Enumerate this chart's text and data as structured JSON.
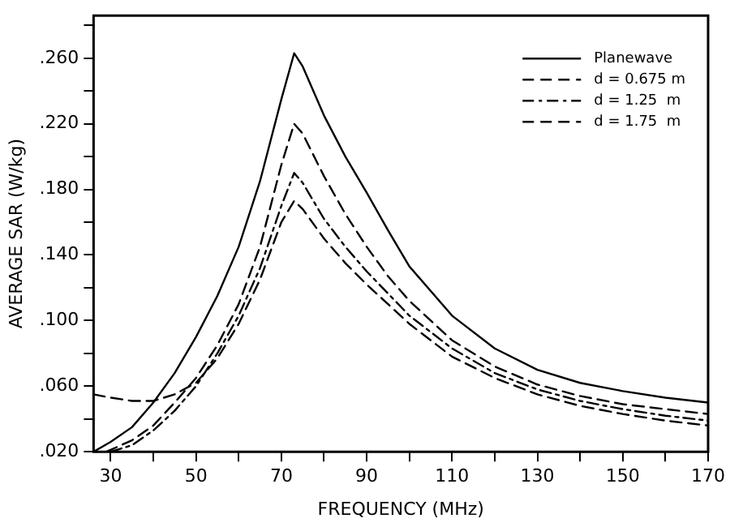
{
  "chart_data": {
    "type": "line",
    "xlabel": "FREQUENCY (MHz)",
    "ylabel": "AVERAGE SAR (W/kg)",
    "xlim": [
      26,
      170
    ],
    "xticks": [
      30,
      {
        "value": 40,
        "label": null
      },
      50,
      {
        "value": 60,
        "label": null
      },
      70,
      {
        "value": 80,
        "label": null
      },
      90,
      {
        "value": 100,
        "label": null
      },
      110,
      {
        "value": 120,
        "label": null
      },
      130,
      {
        "value": 140,
        "label": null
      },
      150,
      {
        "value": 160,
        "label": null
      },
      170
    ],
    "ylim": [
      0.02,
      0.286
    ],
    "yticks": [
      {
        "value": 0.02,
        "label": ".020"
      },
      {
        "value": 0.04,
        "label": null
      },
      {
        "value": 0.06,
        "label": ".060"
      },
      {
        "value": 0.08,
        "label": null
      },
      {
        "value": 0.1,
        "label": ".100"
      },
      {
        "value": 0.12,
        "label": null
      },
      {
        "value": 0.14,
        "label": ".140"
      },
      {
        "value": 0.16,
        "label": null
      },
      {
        "value": 0.18,
        "label": ".180"
      },
      {
        "value": 0.2,
        "label": null
      },
      {
        "value": 0.22,
        "label": ".220"
      },
      {
        "value": 0.24,
        "label": null
      },
      {
        "value": 0.26,
        "label": ".260"
      },
      {
        "value": 0.28,
        "label": null
      }
    ],
    "grid": false,
    "legend": "top right",
    "marker": "none",
    "series": [
      {
        "name": "Planewave",
        "color": "#000000",
        "line_style": "solid",
        "x": [
          26,
          30,
          35,
          40,
          45,
          50,
          55,
          60,
          65,
          70,
          73,
          75,
          80,
          85,
          90,
          95,
          100,
          110,
          120,
          130,
          140,
          150,
          160,
          170
        ],
        "values": [
          0.02,
          0.026,
          0.035,
          0.05,
          0.068,
          0.09,
          0.115,
          0.145,
          0.185,
          0.235,
          0.263,
          0.255,
          0.225,
          0.2,
          0.178,
          0.155,
          0.133,
          0.103,
          0.083,
          0.07,
          0.062,
          0.057,
          0.053,
          0.05
        ]
      },
      {
        "name": "d = 0.675 m",
        "color": "#000000",
        "line_style": "dashed",
        "x": [
          29,
          35,
          40,
          45,
          50,
          55,
          60,
          65,
          70,
          73,
          75,
          80,
          85,
          90,
          95,
          100,
          110,
          120,
          130,
          140,
          150,
          160,
          170
        ],
        "values": [
          0.02,
          0.027,
          0.036,
          0.05,
          0.065,
          0.085,
          0.11,
          0.145,
          0.195,
          0.22,
          0.214,
          0.188,
          0.165,
          0.145,
          0.127,
          0.112,
          0.088,
          0.072,
          0.061,
          0.054,
          0.049,
          0.046,
          0.043
        ]
      },
      {
        "name": "d = 1.25  m",
        "color": "#000000",
        "line_style": "dotted",
        "x": [
          30,
          35,
          40,
          45,
          50,
          55,
          60,
          65,
          70,
          73,
          75,
          80,
          85,
          90,
          100,
          110,
          120,
          130,
          140,
          150,
          160,
          170
        ],
        "values": [
          0.02,
          0.024,
          0.033,
          0.045,
          0.06,
          0.08,
          0.103,
          0.132,
          0.17,
          0.19,
          0.184,
          0.162,
          0.145,
          0.13,
          0.103,
          0.083,
          0.068,
          0.058,
          0.051,
          0.046,
          0.042,
          0.039
        ]
      },
      {
        "name": "d = 1.75  m",
        "color": "#000000",
        "line_style": "dashed",
        "x": [
          26,
          30,
          35,
          40,
          45,
          50,
          55,
          60,
          65,
          70,
          73,
          75,
          80,
          85,
          90,
          100,
          110,
          120,
          130,
          140,
          150,
          160,
          170
        ],
        "values": [
          0.055,
          0.053,
          0.051,
          0.051,
          0.055,
          0.062,
          0.077,
          0.098,
          0.125,
          0.16,
          0.173,
          0.168,
          0.15,
          0.135,
          0.122,
          0.098,
          0.078,
          0.065,
          0.055,
          0.048,
          0.043,
          0.039,
          0.036
        ]
      }
    ]
  }
}
